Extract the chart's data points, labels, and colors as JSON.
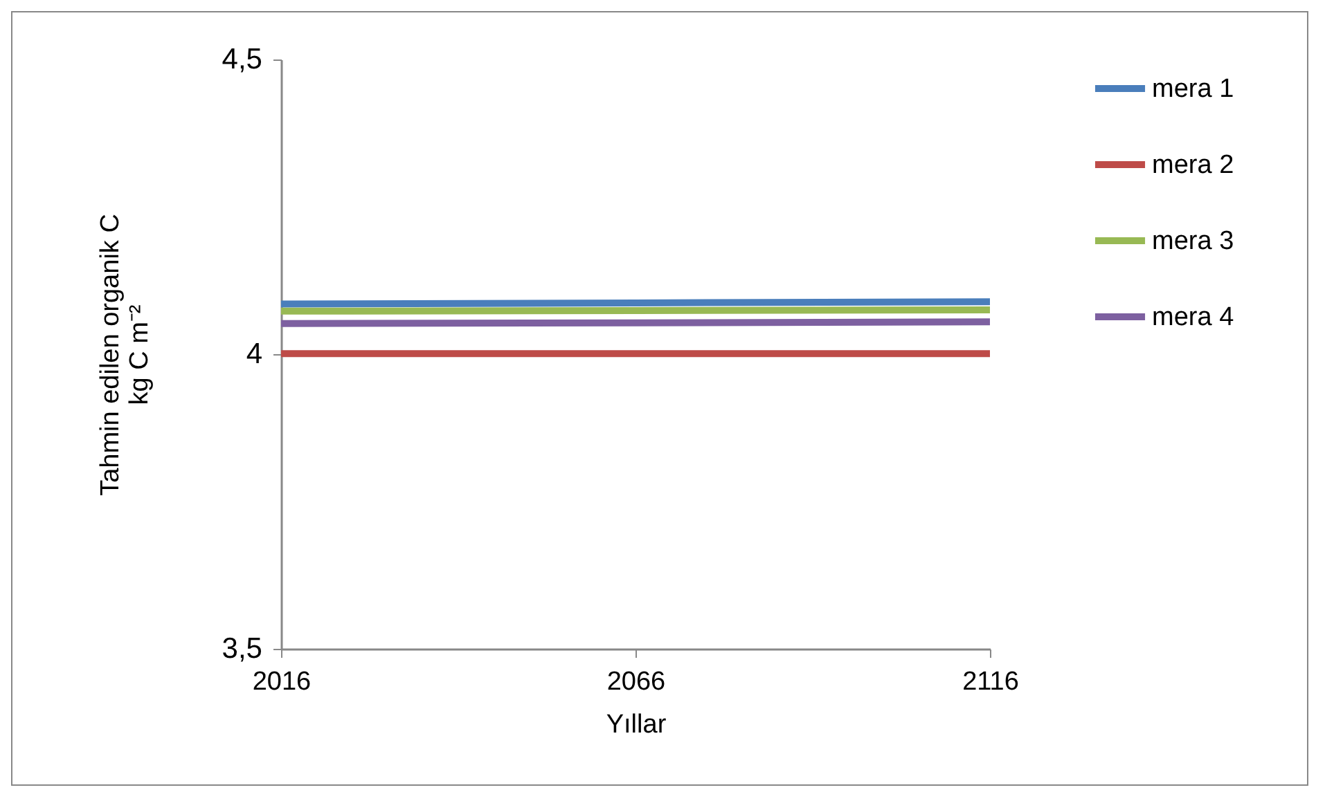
{
  "chart_data": {
    "type": "line",
    "xlabel": "Yıllar",
    "ylabel": "Tahmin edilen organik C\nkg C m⁻²",
    "x": [
      2016,
      2066,
      2116
    ],
    "series": [
      {
        "name": "mera 1",
        "color": "#4a7ebb",
        "values": [
          4.085,
          4.087,
          4.089
        ]
      },
      {
        "name": "mera 2",
        "color": "#be4b48",
        "values": [
          4.001,
          4.001,
          4.001
        ]
      },
      {
        "name": "mera 3",
        "color": "#98b954",
        "values": [
          4.073,
          4.074,
          4.075
        ]
      },
      {
        "name": "mera 4",
        "color": "#7d60a0",
        "values": [
          4.052,
          4.053,
          4.055
        ]
      }
    ],
    "xlim": [
      2016,
      2116
    ],
    "xticks": [
      2016,
      2066,
      2116
    ],
    "ylim": [
      3.5,
      4.5
    ],
    "yticks": [
      {
        "value": 3.5,
        "label": "3,5"
      },
      4,
      {
        "value": 4.5,
        "label": "4,5"
      }
    ],
    "grid": false,
    "legend": "right",
    "marker": "none",
    "line_style": "solid"
  }
}
